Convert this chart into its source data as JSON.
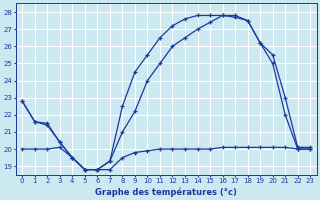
{
  "xlabel": "Graphe des températures (°c)",
  "xlim": [
    -0.5,
    23.5
  ],
  "ylim": [
    18.5,
    28.5
  ],
  "yticks": [
    19,
    20,
    21,
    22,
    23,
    24,
    25,
    26,
    27,
    28
  ],
  "xticks": [
    0,
    1,
    2,
    3,
    4,
    5,
    6,
    7,
    8,
    9,
    10,
    11,
    12,
    13,
    14,
    15,
    16,
    17,
    18,
    19,
    20,
    21,
    22,
    23
  ],
  "bg_color": "#cce8f0",
  "grid_color": "#ffffff",
  "line_color": "#1a3a9e",
  "curve1_x": [
    0,
    1,
    2,
    3,
    4,
    5,
    6,
    7,
    8,
    9,
    10,
    11,
    12,
    13,
    14,
    15,
    16,
    17,
    18,
    19,
    20,
    21,
    22,
    23
  ],
  "curve1_y": [
    22.8,
    21.6,
    21.5,
    20.4,
    19.5,
    18.8,
    18.8,
    19.3,
    21.0,
    22.2,
    24.0,
    25.0,
    26.0,
    26.5,
    27.0,
    27.4,
    27.8,
    27.8,
    27.5,
    26.2,
    25.5,
    23.0,
    20.1,
    20.1
  ],
  "curve2_x": [
    0,
    1,
    2,
    3,
    4,
    5,
    6,
    7,
    8,
    9,
    10,
    11,
    12,
    13,
    14,
    15,
    16,
    17,
    18,
    19,
    20,
    21,
    22,
    23
  ],
  "curve2_y": [
    22.8,
    21.6,
    21.4,
    20.4,
    19.5,
    18.8,
    18.8,
    19.3,
    22.5,
    24.5,
    25.5,
    26.5,
    27.2,
    27.6,
    27.8,
    27.8,
    27.8,
    27.7,
    27.5,
    26.2,
    25.0,
    22.0,
    20.0,
    20.0
  ],
  "curve3_x": [
    0,
    1,
    2,
    3,
    4,
    5,
    6,
    7,
    8,
    9,
    10,
    11,
    12,
    13,
    14,
    15,
    16,
    17,
    18,
    19,
    20,
    21,
    22,
    23
  ],
  "curve3_y": [
    20.0,
    20.0,
    20.0,
    20.1,
    19.5,
    18.8,
    18.8,
    18.8,
    19.5,
    19.8,
    19.9,
    20.0,
    20.0,
    20.0,
    20.0,
    20.0,
    20.1,
    20.1,
    20.1,
    20.1,
    20.1,
    20.1,
    20.0,
    20.0
  ]
}
